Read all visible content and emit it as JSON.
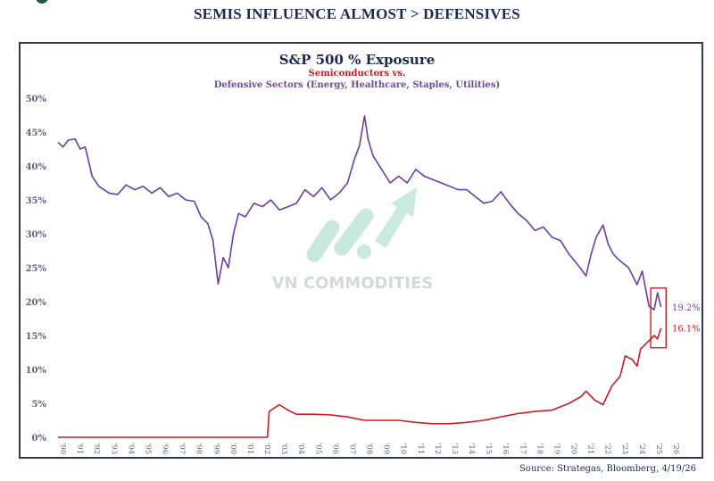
{
  "page": {
    "headline": "SEMIS INFLUENCE ALMOST > DEFENSIVES",
    "source": "Source: Strategas, Bloomberg, 4/19/26",
    "watermark": "VN COMMODITIES"
  },
  "chart": {
    "title": "S&P 500 % Exposure",
    "subtitle_semis": "Semiconductors vs.",
    "subtitle_defensives": "Defensive Sectors (Energy, Healthcare, Staples, Utilities)",
    "end_label_defensives": "19.2%",
    "end_label_semis": "16.1%"
  },
  "colors": {
    "semis": "#c81d25",
    "defensives": "#6a3fa0",
    "title": "#1b2a52",
    "frame": "#2c3a55",
    "axis_text": "#5a6478",
    "watermark": "#bfe6d6"
  },
  "chart_data": {
    "type": "line",
    "title": "S&P 500 % Exposure",
    "subtitle": "Semiconductors vs. Defensive Sectors (Energy, Healthcare, Staples, Utilities)",
    "xlabel": "",
    "ylabel": "",
    "ylim": [
      0,
      50
    ],
    "yticks": [
      "0%",
      "5%",
      "10%",
      "15%",
      "20%",
      "25%",
      "30%",
      "35%",
      "40%",
      "45%",
      "50%"
    ],
    "xticks": [
      "'90",
      "'91",
      "'92",
      "'93",
      "'94",
      "'95",
      "'96",
      "'97",
      "'98",
      "'99",
      "'00",
      "'01",
      "'02",
      "'03",
      "'04",
      "'05",
      "'06",
      "'07",
      "'08",
      "'09",
      "'10",
      "'11",
      "'12",
      "'13",
      "'14",
      "'15",
      "'16",
      "'17",
      "'18",
      "'19",
      "'20",
      "'21",
      "'22",
      "'23",
      "'24",
      "'25",
      "'26"
    ],
    "grid": false,
    "legend": "none (title-colored subtitles)",
    "series": [
      {
        "name": "Defensive Sectors (Energy, Healthcare, Staples, Utilities)",
        "color": "#6a3fa0",
        "x": [
          1990.0,
          1990.3,
          1990.6,
          1991.0,
          1991.3,
          1991.6,
          1992.0,
          1992.4,
          1993.0,
          1993.5,
          1994.0,
          1994.5,
          1995.0,
          1995.5,
          1996.0,
          1996.5,
          1997.0,
          1997.5,
          1998.0,
          1998.4,
          1998.8,
          1999.1,
          1999.4,
          1999.7,
          2000.0,
          2000.3,
          2000.6,
          2001.0,
          2001.5,
          2002.0,
          2002.5,
          2003.0,
          2003.5,
          2004.0,
          2004.5,
          2005.0,
          2005.5,
          2006.0,
          2006.5,
          2007.0,
          2007.4,
          2007.7,
          2008.0,
          2008.2,
          2008.5,
          2009.0,
          2009.5,
          2010.0,
          2010.5,
          2011.0,
          2011.5,
          2012.0,
          2012.5,
          2013.0,
          2013.5,
          2014.0,
          2014.5,
          2015.0,
          2015.5,
          2016.0,
          2016.5,
          2017.0,
          2017.5,
          2018.0,
          2018.5,
          2019.0,
          2019.5,
          2020.0,
          2020.5,
          2021.0,
          2021.3,
          2021.6,
          2022.0,
          2022.3,
          2022.6,
          2023.0,
          2023.5,
          2024.0,
          2024.3,
          2024.7,
          2025.0,
          2025.2,
          2025.4
        ],
        "values": [
          43.5,
          42.8,
          43.8,
          44.0,
          42.5,
          42.8,
          38.5,
          37.0,
          36.0,
          35.8,
          37.2,
          36.5,
          37.0,
          36.0,
          36.8,
          35.5,
          36.0,
          35.0,
          34.8,
          32.5,
          31.5,
          29.0,
          22.6,
          26.5,
          25.0,
          30.0,
          33.0,
          32.5,
          34.5,
          34.0,
          35.0,
          33.5,
          34.0,
          34.5,
          36.5,
          35.5,
          36.8,
          35.0,
          36.0,
          37.5,
          41.0,
          43.0,
          47.4,
          44.0,
          41.5,
          39.5,
          37.5,
          38.5,
          37.5,
          39.5,
          38.5,
          38.0,
          37.5,
          37.0,
          36.5,
          36.5,
          35.5,
          34.5,
          34.8,
          36.2,
          34.5,
          33.0,
          32.0,
          30.5,
          31.0,
          29.5,
          29.0,
          27.0,
          25.5,
          23.8,
          27.0,
          29.5,
          31.3,
          28.5,
          27.0,
          26.0,
          25.0,
          22.5,
          24.5,
          19.3,
          18.8,
          21.3,
          19.2
        ]
      },
      {
        "name": "Semiconductors",
        "color": "#c81d25",
        "x": [
          1990.0,
          2002.3,
          2002.4,
          2002.8,
          2003.0,
          2003.5,
          2004.0,
          2005.0,
          2006.0,
          2007.0,
          2008.0,
          2009.0,
          2010.0,
          2011.0,
          2012.0,
          2013.0,
          2014.0,
          2015.0,
          2016.0,
          2017.0,
          2018.0,
          2019.0,
          2020.0,
          2020.7,
          2021.0,
          2021.5,
          2022.0,
          2022.5,
          2023.0,
          2023.3,
          2023.7,
          2024.0,
          2024.2,
          2024.6,
          2025.0,
          2025.2,
          2025.4
        ],
        "values": [
          0.0,
          0.0,
          3.8,
          4.5,
          4.8,
          4.0,
          3.4,
          3.4,
          3.3,
          3.0,
          2.5,
          2.5,
          2.5,
          2.2,
          2.0,
          2.0,
          2.2,
          2.5,
          3.0,
          3.5,
          3.8,
          4.0,
          5.0,
          6.0,
          6.8,
          5.5,
          4.8,
          7.5,
          9.0,
          12.0,
          11.5,
          10.5,
          13.0,
          14.0,
          15.0,
          14.5,
          16.1
        ]
      }
    ],
    "annotations": [
      {
        "text": "19.2%",
        "series": "Defensive Sectors",
        "position": "right of last point"
      },
      {
        "text": "16.1%",
        "series": "Semiconductors",
        "position": "right of last point"
      },
      {
        "type": "highlight-box",
        "x_range": [
          2024.8,
          2025.7
        ],
        "y_range": [
          13.2,
          22.0
        ],
        "color": "#c81d25"
      }
    ]
  }
}
